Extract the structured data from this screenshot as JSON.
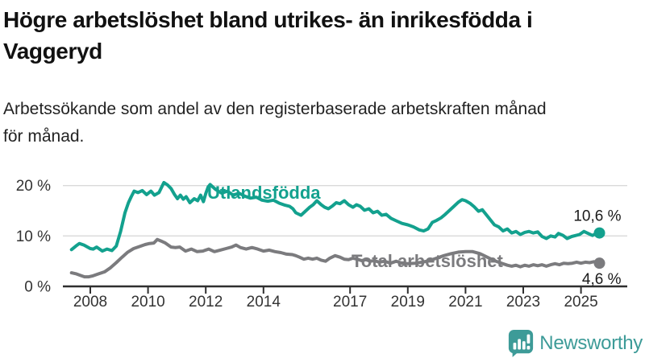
{
  "header": {
    "title": "Högre arbetslöshet bland utrikes- än inrikesfödda i Vaggeryd",
    "title_lines": [
      "Högre arbetslöshet bland utrikes- än inrikesfödda i",
      "Vaggeryd"
    ],
    "subtitle": "Arbetssökande som andel av den registerbaserade arbetskraften månad för månad.",
    "subtitle_lines": [
      "Arbetssökande som andel av den registerbaserade arbetskraften månad",
      "för månad."
    ]
  },
  "footer": {
    "brand": "Newsworthy",
    "brand_color": "#3d9b98",
    "logo_icon": "bar-chart-speech-bubble-icon"
  },
  "colors": {
    "accent_teal": "#13a18e",
    "line_gray": "#7b7b7e",
    "gridline": "#d9d9d9",
    "axis": "#2f2f2f",
    "tick_label": "#333333",
    "annotation_text": "#1a1a1a"
  },
  "chart_data": {
    "type": "line",
    "title": "Högre arbetslöshet bland utrikes- än inrikesfödda i Vaggeryd",
    "xlabel": "",
    "ylabel": "",
    "grid": "horizontal",
    "xlim": [
      2007.3,
      2026.1
    ],
    "ylim": [
      0,
      22
    ],
    "x_ticks": [
      2008,
      2010,
      2012,
      2014,
      2017,
      2019,
      2021,
      2023,
      2025
    ],
    "x_tick_labels": [
      "2008",
      "2010",
      "2012",
      "2014",
      "2017",
      "2019",
      "2021",
      "2023",
      "2025"
    ],
    "y_ticks": [
      0,
      10,
      20
    ],
    "y_tick_labels": [
      "0 %",
      "10 %",
      "20 %"
    ],
    "series": [
      {
        "name": "Utlandsfödda",
        "color": "#13a18e",
        "end_value": 10.6,
        "end_label": "10,6 %",
        "end_label_position": "above",
        "name_label": {
          "year": 2012.05,
          "pct": 17.4
        },
        "points": [
          [
            2007.35,
            7.3
          ],
          [
            2007.5,
            8.0
          ],
          [
            2007.62,
            8.5
          ],
          [
            2007.78,
            8.2
          ],
          [
            2008.0,
            7.5
          ],
          [
            2008.1,
            7.4
          ],
          [
            2008.22,
            7.8
          ],
          [
            2008.42,
            7.0
          ],
          [
            2008.58,
            7.4
          ],
          [
            2008.75,
            7.1
          ],
          [
            2008.9,
            8.0
          ],
          [
            2009.05,
            10.9
          ],
          [
            2009.2,
            14.6
          ],
          [
            2009.32,
            16.6
          ],
          [
            2009.42,
            17.8
          ],
          [
            2009.52,
            18.9
          ],
          [
            2009.65,
            18.6
          ],
          [
            2009.8,
            19.0
          ],
          [
            2009.95,
            18.2
          ],
          [
            2010.1,
            18.9
          ],
          [
            2010.22,
            18.1
          ],
          [
            2010.38,
            18.6
          ],
          [
            2010.55,
            20.6
          ],
          [
            2010.68,
            20.1
          ],
          [
            2010.8,
            19.4
          ],
          [
            2010.92,
            18.2
          ],
          [
            2011.02,
            17.4
          ],
          [
            2011.12,
            18.1
          ],
          [
            2011.22,
            17.3
          ],
          [
            2011.32,
            17.8
          ],
          [
            2011.45,
            16.6
          ],
          [
            2011.6,
            17.4
          ],
          [
            2011.72,
            17.0
          ],
          [
            2011.82,
            18.1
          ],
          [
            2011.92,
            16.8
          ],
          [
            2012.0,
            18.4
          ],
          [
            2012.08,
            19.7
          ],
          [
            2012.15,
            20.2
          ],
          [
            2012.35,
            19.2
          ],
          [
            2012.55,
            18.5
          ],
          [
            2012.75,
            18.9
          ],
          [
            2012.95,
            18.1
          ],
          [
            2013.15,
            18.5
          ],
          [
            2013.35,
            17.9
          ],
          [
            2013.55,
            17.5
          ],
          [
            2013.75,
            17.7
          ],
          [
            2013.95,
            17.1
          ],
          [
            2014.15,
            16.9
          ],
          [
            2014.35,
            17.1
          ],
          [
            2014.55,
            16.5
          ],
          [
            2014.75,
            16.1
          ],
          [
            2014.9,
            15.9
          ],
          [
            2015.02,
            15.4
          ],
          [
            2015.12,
            14.6
          ],
          [
            2015.3,
            14.1
          ],
          [
            2015.45,
            14.9
          ],
          [
            2015.6,
            15.7
          ],
          [
            2015.72,
            16.2
          ],
          [
            2015.85,
            17.0
          ],
          [
            2016.0,
            16.2
          ],
          [
            2016.12,
            15.7
          ],
          [
            2016.25,
            15.4
          ],
          [
            2016.4,
            16.0
          ],
          [
            2016.52,
            16.6
          ],
          [
            2016.65,
            16.4
          ],
          [
            2016.8,
            17.0
          ],
          [
            2016.95,
            16.2
          ],
          [
            2017.1,
            15.7
          ],
          [
            2017.22,
            16.2
          ],
          [
            2017.35,
            15.9
          ],
          [
            2017.5,
            15.1
          ],
          [
            2017.65,
            15.4
          ],
          [
            2017.8,
            14.6
          ],
          [
            2017.95,
            14.9
          ],
          [
            2018.1,
            14.1
          ],
          [
            2018.25,
            14.3
          ],
          [
            2018.42,
            13.5
          ],
          [
            2018.6,
            13.0
          ],
          [
            2018.8,
            12.5
          ],
          [
            2019.0,
            12.2
          ],
          [
            2019.2,
            11.8
          ],
          [
            2019.4,
            11.2
          ],
          [
            2019.55,
            11.0
          ],
          [
            2019.7,
            11.4
          ],
          [
            2019.85,
            12.7
          ],
          [
            2020.0,
            13.1
          ],
          [
            2020.15,
            13.6
          ],
          [
            2020.3,
            14.3
          ],
          [
            2020.45,
            15.1
          ],
          [
            2020.6,
            15.9
          ],
          [
            2020.75,
            16.7
          ],
          [
            2020.88,
            17.2
          ],
          [
            2021.0,
            17.0
          ],
          [
            2021.15,
            16.5
          ],
          [
            2021.3,
            15.8
          ],
          [
            2021.45,
            14.9
          ],
          [
            2021.58,
            15.2
          ],
          [
            2021.72,
            14.2
          ],
          [
            2021.86,
            13.2
          ],
          [
            2022.0,
            12.2
          ],
          [
            2022.15,
            11.8
          ],
          [
            2022.3,
            11.0
          ],
          [
            2022.45,
            11.4
          ],
          [
            2022.6,
            10.6
          ],
          [
            2022.75,
            10.9
          ],
          [
            2022.9,
            10.3
          ],
          [
            2023.05,
            10.7
          ],
          [
            2023.2,
            10.9
          ],
          [
            2023.35,
            10.6
          ],
          [
            2023.5,
            10.8
          ],
          [
            2023.65,
            9.9
          ],
          [
            2023.8,
            9.5
          ],
          [
            2023.95,
            10.0
          ],
          [
            2024.1,
            9.8
          ],
          [
            2024.22,
            10.5
          ],
          [
            2024.38,
            10.1
          ],
          [
            2024.52,
            9.5
          ],
          [
            2024.68,
            9.9
          ],
          [
            2024.82,
            10.1
          ],
          [
            2024.95,
            10.3
          ],
          [
            2025.1,
            10.9
          ],
          [
            2025.25,
            10.5
          ],
          [
            2025.4,
            10.1
          ],
          [
            2025.52,
            10.5
          ],
          [
            2025.64,
            10.6
          ]
        ]
      },
      {
        "name": "Total arbetslöshet",
        "color": "#7b7b7e",
        "end_value": 4.6,
        "end_label": "4,6 %",
        "end_label_position": "below",
        "name_label": {
          "year": 2017.05,
          "pct": 3.8
        },
        "points": [
          [
            2007.35,
            2.7
          ],
          [
            2007.5,
            2.5
          ],
          [
            2007.65,
            2.2
          ],
          [
            2007.8,
            1.9
          ],
          [
            2007.95,
            1.9
          ],
          [
            2008.1,
            2.1
          ],
          [
            2008.3,
            2.5
          ],
          [
            2008.5,
            2.9
          ],
          [
            2008.7,
            3.7
          ],
          [
            2008.9,
            4.7
          ],
          [
            2009.1,
            5.8
          ],
          [
            2009.3,
            6.8
          ],
          [
            2009.5,
            7.5
          ],
          [
            2009.7,
            7.9
          ],
          [
            2009.9,
            8.3
          ],
          [
            2010.05,
            8.5
          ],
          [
            2010.2,
            8.6
          ],
          [
            2010.32,
            9.3
          ],
          [
            2010.45,
            9.0
          ],
          [
            2010.6,
            8.6
          ],
          [
            2010.8,
            7.8
          ],
          [
            2010.95,
            7.7
          ],
          [
            2011.1,
            7.8
          ],
          [
            2011.3,
            7.0
          ],
          [
            2011.5,
            7.4
          ],
          [
            2011.7,
            6.9
          ],
          [
            2011.9,
            7.0
          ],
          [
            2012.1,
            7.4
          ],
          [
            2012.3,
            6.9
          ],
          [
            2012.5,
            7.2
          ],
          [
            2012.7,
            7.5
          ],
          [
            2012.9,
            7.8
          ],
          [
            2013.05,
            8.2
          ],
          [
            2013.2,
            7.7
          ],
          [
            2013.4,
            7.4
          ],
          [
            2013.6,
            7.7
          ],
          [
            2013.8,
            7.4
          ],
          [
            2014.0,
            7.0
          ],
          [
            2014.2,
            7.2
          ],
          [
            2014.4,
            6.9
          ],
          [
            2014.6,
            6.7
          ],
          [
            2014.8,
            6.4
          ],
          [
            2015.0,
            6.3
          ],
          [
            2015.12,
            6.1
          ],
          [
            2015.25,
            5.8
          ],
          [
            2015.4,
            5.4
          ],
          [
            2015.55,
            5.6
          ],
          [
            2015.7,
            5.4
          ],
          [
            2015.85,
            5.6
          ],
          [
            2016.0,
            5.2
          ],
          [
            2016.15,
            5.0
          ],
          [
            2016.3,
            5.6
          ],
          [
            2016.48,
            6.1
          ],
          [
            2016.65,
            5.8
          ],
          [
            2016.8,
            5.4
          ],
          [
            2016.95,
            5.3
          ],
          [
            2017.1,
            5.6
          ],
          [
            2017.25,
            5.4
          ],
          [
            2017.4,
            5.1
          ],
          [
            2017.55,
            5.3
          ],
          [
            2017.7,
            5.0
          ],
          [
            2017.85,
            5.1
          ],
          [
            2018.0,
            4.8
          ],
          [
            2018.2,
            5.0
          ],
          [
            2018.4,
            4.6
          ],
          [
            2018.6,
            5.0
          ],
          [
            2018.8,
            4.6
          ],
          [
            2019.0,
            4.5
          ],
          [
            2019.25,
            4.6
          ],
          [
            2019.5,
            4.8
          ],
          [
            2019.75,
            5.1
          ],
          [
            2020.0,
            5.6
          ],
          [
            2020.25,
            6.1
          ],
          [
            2020.5,
            6.5
          ],
          [
            2020.75,
            6.8
          ],
          [
            2021.0,
            6.9
          ],
          [
            2021.25,
            6.9
          ],
          [
            2021.5,
            6.5
          ],
          [
            2021.75,
            5.8
          ],
          [
            2022.0,
            5.1
          ],
          [
            2022.25,
            4.6
          ],
          [
            2022.45,
            4.2
          ],
          [
            2022.6,
            4.0
          ],
          [
            2022.75,
            4.2
          ],
          [
            2022.9,
            3.9
          ],
          [
            2023.05,
            4.2
          ],
          [
            2023.2,
            4.0
          ],
          [
            2023.35,
            4.3
          ],
          [
            2023.5,
            4.1
          ],
          [
            2023.65,
            4.3
          ],
          [
            2023.8,
            4.0
          ],
          [
            2023.95,
            4.3
          ],
          [
            2024.1,
            4.5
          ],
          [
            2024.25,
            4.3
          ],
          [
            2024.4,
            4.6
          ],
          [
            2024.55,
            4.5
          ],
          [
            2024.7,
            4.6
          ],
          [
            2024.85,
            4.8
          ],
          [
            2025.0,
            4.6
          ],
          [
            2025.15,
            4.8
          ],
          [
            2025.3,
            4.7
          ],
          [
            2025.45,
            4.9
          ],
          [
            2025.64,
            4.6
          ]
        ]
      }
    ]
  }
}
